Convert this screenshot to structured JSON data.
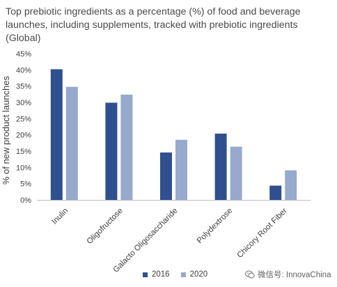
{
  "title": "Top prebiotic ingredients as a percentage (%) of food and beverage launches, including supplements, tracked with prebiotic ingredients (Global)",
  "chart_data": {
    "type": "bar",
    "title": "Top prebiotic ingredients as a percentage (%) of food and beverage launches, including supplements, tracked with prebiotic ingredients (Global)",
    "xlabel": "",
    "ylabel": "% of new product launches",
    "ylim": [
      0,
      45
    ],
    "yticks": [
      "0%",
      "5%",
      "10%",
      "15%",
      "20%",
      "25%",
      "30%",
      "35%",
      "40%",
      "45%"
    ],
    "categories": [
      "Inulin",
      "Oligofructose",
      "Galacto Oligosaccharide",
      "Polydextrose",
      "Chicory Root Fiber"
    ],
    "series": [
      {
        "name": "2016",
        "color": "#2f4f8f",
        "values": [
          40.2,
          29.9,
          14.6,
          20.4,
          4.4
        ]
      },
      {
        "name": "2020",
        "color": "#97a9cc",
        "values": [
          34.8,
          32.4,
          18.5,
          16.4,
          9.1
        ]
      }
    ],
    "grid": false,
    "legend_position": "bottom"
  },
  "watermark": {
    "icon": "wechat-icon",
    "text": "微信号: InnovaChina"
  }
}
